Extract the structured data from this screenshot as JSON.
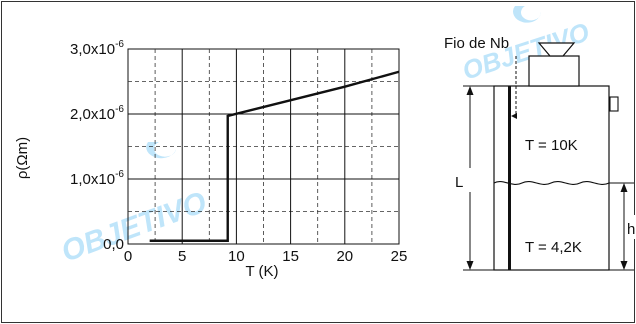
{
  "chart_data": {
    "type": "line",
    "xlabel": "T (K)",
    "ylabel": "ρ(Ωm)",
    "xlim": [
      0,
      25
    ],
    "ylim": [
      0,
      3e-06
    ],
    "grid": true,
    "x_ticks": [
      {
        "value": 0,
        "label": "0"
      },
      {
        "value": 5,
        "label": "5"
      },
      {
        "value": 10,
        "label": "10"
      },
      {
        "value": 15,
        "label": "15"
      },
      {
        "value": 20,
        "label": "20"
      },
      {
        "value": 25,
        "label": "25"
      }
    ],
    "y_ticks": [
      {
        "value": 0,
        "label": "0,0",
        "sup": ""
      },
      {
        "value": 1e-06,
        "label": "1,0x10",
        "sup": "-6"
      },
      {
        "value": 2e-06,
        "label": "2,0x10",
        "sup": "-6"
      },
      {
        "value": 3e-06,
        "label": "3,0x10",
        "sup": "-6"
      }
    ],
    "series": [
      {
        "x": [
          2,
          9.2,
          9.2,
          20,
          25
        ],
        "y": [
          5e-08,
          5e-08,
          1.97e-06,
          2.42e-06,
          2.65e-06
        ]
      }
    ]
  },
  "diagram": {
    "wire_label": "Fio de Nb",
    "upper_region_label": "T = 10K",
    "lower_region_label": "T = 4,2K",
    "length_label": "L",
    "level_label": "h"
  },
  "watermark": {
    "text": "OBJETIVO",
    "color": "#bfe5fa"
  }
}
